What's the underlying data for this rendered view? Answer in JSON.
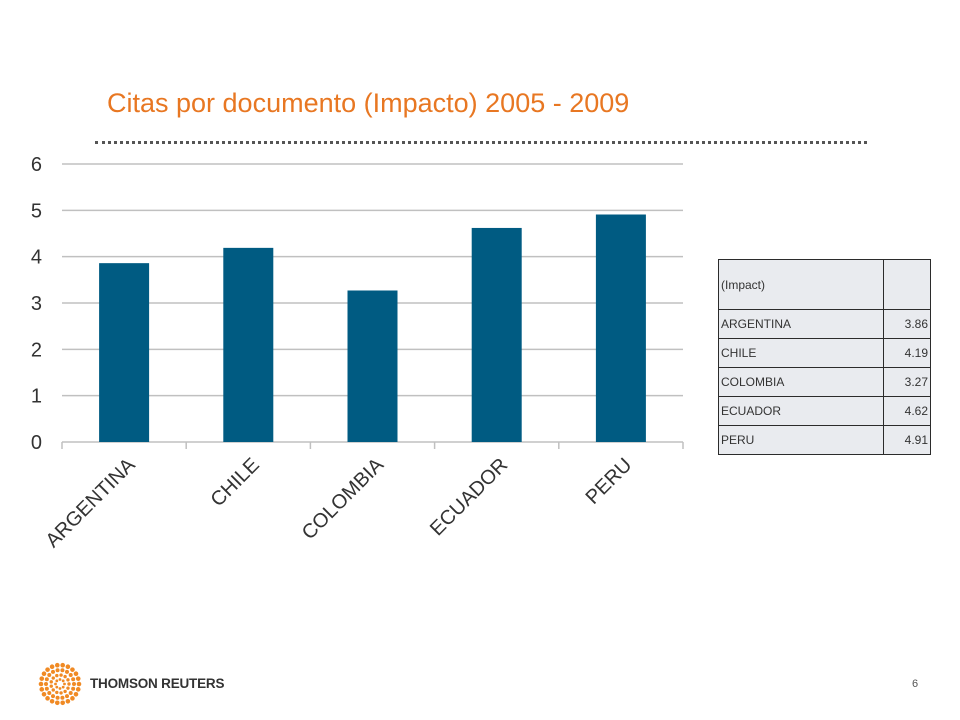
{
  "slide": {
    "title": "Citas por documento (Impacto) 2005 - 2009",
    "brand": "THOMSON REUTERS",
    "page_number": "6"
  },
  "colors": {
    "title": "#e87722",
    "bar": "#005b82",
    "grid": "#c0c0c0",
    "table_fill": "#e9ebef"
  },
  "chart_data": {
    "type": "bar",
    "categories": [
      "ARGENTINA",
      "CHILE",
      "COLOMBIA",
      "ECUADOR",
      "PERU"
    ],
    "values": [
      3.86,
      4.19,
      3.27,
      4.62,
      4.91
    ],
    "title": "Citas por documento (Impacto) 2005 - 2009",
    "ylim": [
      0,
      6
    ],
    "yticks": [
      "0",
      "1",
      "2",
      "3",
      "4",
      "5",
      "6"
    ],
    "grid": true,
    "legend": "none"
  },
  "table": {
    "header": "(Impact)",
    "header_value": "",
    "rows": [
      {
        "label": "ARGENTINA",
        "value": "3.86"
      },
      {
        "label": "CHILE",
        "value": "4.19"
      },
      {
        "label": "COLOMBIA",
        "value": "3.27"
      },
      {
        "label": "ECUADOR",
        "value": "4.62"
      },
      {
        "label": "PERU",
        "value": "4.91"
      }
    ]
  },
  "logo": {
    "icon": "thomson-reuters-dot-circle-icon"
  }
}
